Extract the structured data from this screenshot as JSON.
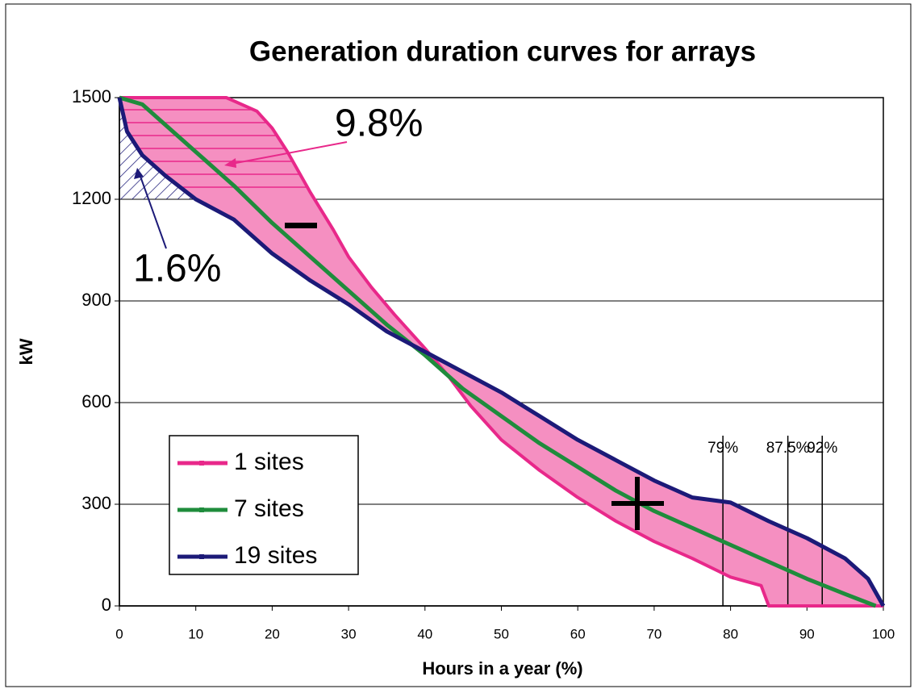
{
  "chart_data": {
    "type": "line",
    "title": "Generation duration curves for arrays",
    "xlabel": "Hours in a year (%)",
    "ylabel": "kW",
    "xlim": [
      0,
      100
    ],
    "ylim": [
      0,
      1500
    ],
    "xticks": [
      0,
      10,
      20,
      30,
      40,
      50,
      60,
      70,
      80,
      90,
      100
    ],
    "yticks": [
      0,
      300,
      600,
      900,
      1200,
      1500
    ],
    "grid": true,
    "legend": "lower left",
    "series": [
      {
        "name": "1 sites",
        "color": "#e8288a",
        "x": [
          0,
          14,
          18,
          20,
          22,
          25,
          28,
          30,
          33,
          36,
          40,
          43,
          46,
          50,
          55,
          60,
          65,
          70,
          75,
          80,
          84,
          85,
          100
        ],
        "values": [
          1500,
          1500,
          1460,
          1410,
          1340,
          1220,
          1110,
          1030,
          940,
          860,
          760,
          680,
          590,
          490,
          400,
          320,
          250,
          190,
          140,
          85,
          60,
          0,
          0
        ]
      },
      {
        "name": "7 sites",
        "color": "#1f8c3c",
        "x": [
          0,
          3,
          6,
          10,
          15,
          20,
          25,
          30,
          35,
          40,
          45,
          50,
          55,
          60,
          65,
          70,
          75,
          80,
          85,
          90,
          95,
          99
        ],
        "values": [
          1500,
          1480,
          1420,
          1340,
          1240,
          1130,
          1030,
          930,
          830,
          740,
          640,
          560,
          480,
          410,
          340,
          280,
          230,
          180,
          130,
          80,
          35,
          0
        ]
      },
      {
        "name": "19 sites",
        "color": "#1c1a78",
        "x": [
          0,
          1,
          3,
          6,
          10,
          15,
          20,
          25,
          30,
          35,
          40,
          45,
          50,
          55,
          60,
          65,
          70,
          75,
          80,
          85,
          90,
          95,
          98,
          100
        ],
        "values": [
          1500,
          1400,
          1330,
          1270,
          1200,
          1140,
          1040,
          960,
          890,
          810,
          750,
          690,
          630,
          560,
          490,
          430,
          370,
          320,
          305,
          250,
          200,
          140,
          80,
          0
        ]
      }
    ],
    "annotations": [
      {
        "text": "9.8%",
        "color": "#e8288a"
      },
      {
        "text": "1.6%",
        "color": "#1c1a78"
      }
    ],
    "vlines": [
      {
        "value": 79,
        "label": "79%"
      },
      {
        "value": 87.5,
        "label": "87.5%"
      },
      {
        "value": 92,
        "label": "92%"
      }
    ]
  }
}
